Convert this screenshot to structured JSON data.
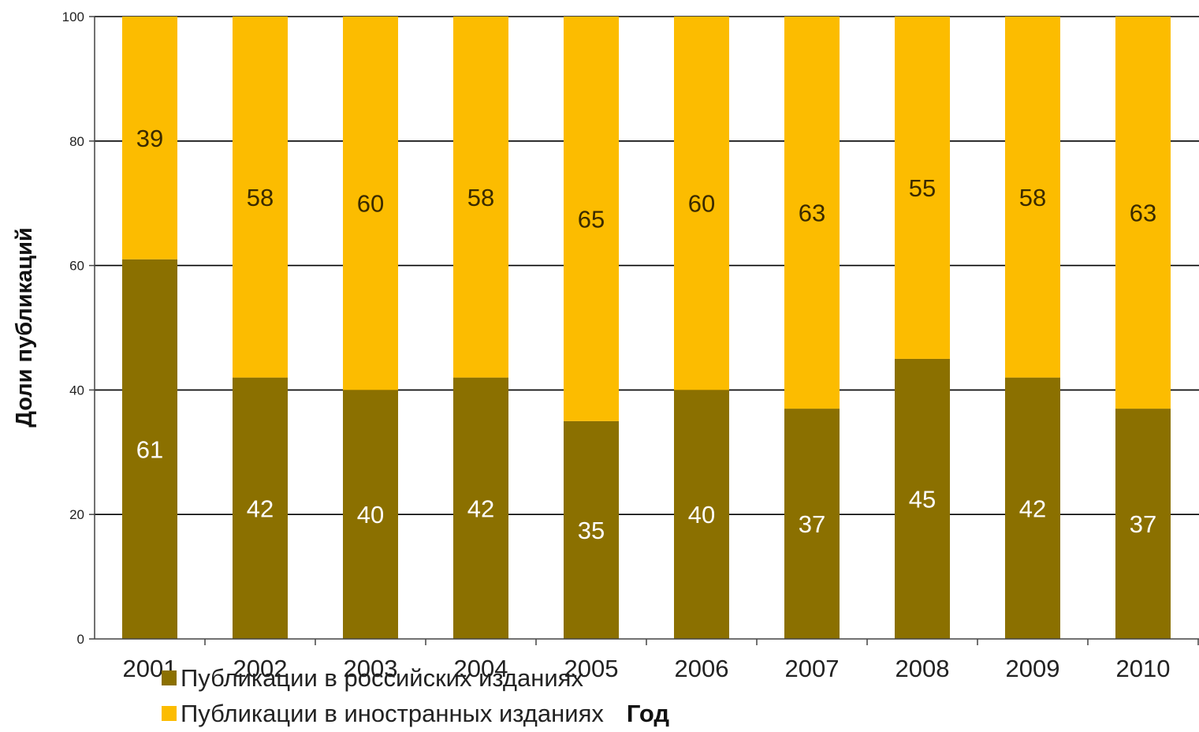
{
  "chart_data": {
    "type": "bar",
    "stacked": true,
    "categories": [
      "2001",
      "2002",
      "2003",
      "2004",
      "2005",
      "2006",
      "2007",
      "2008",
      "2009",
      "2010"
    ],
    "series": [
      {
        "name": "Публикации в российских изданиях",
        "values": [
          61,
          42,
          40,
          42,
          35,
          40,
          37,
          45,
          42,
          37
        ],
        "color": "#8b7000",
        "label_color": "#ffffff"
      },
      {
        "name": "Публикации в иностранных изданиях",
        "values": [
          39,
          58,
          60,
          58,
          65,
          60,
          63,
          55,
          58,
          63
        ],
        "color": "#fcbc00",
        "label_color": "#3a2a00"
      }
    ],
    "title": "",
    "xlabel": "Год",
    "ylabel": "Доли публикаций",
    "ylim": [
      0,
      100
    ],
    "yticks": [
      0,
      20,
      40,
      60,
      80,
      100
    ],
    "grid": true,
    "legend": "bottom-left"
  }
}
